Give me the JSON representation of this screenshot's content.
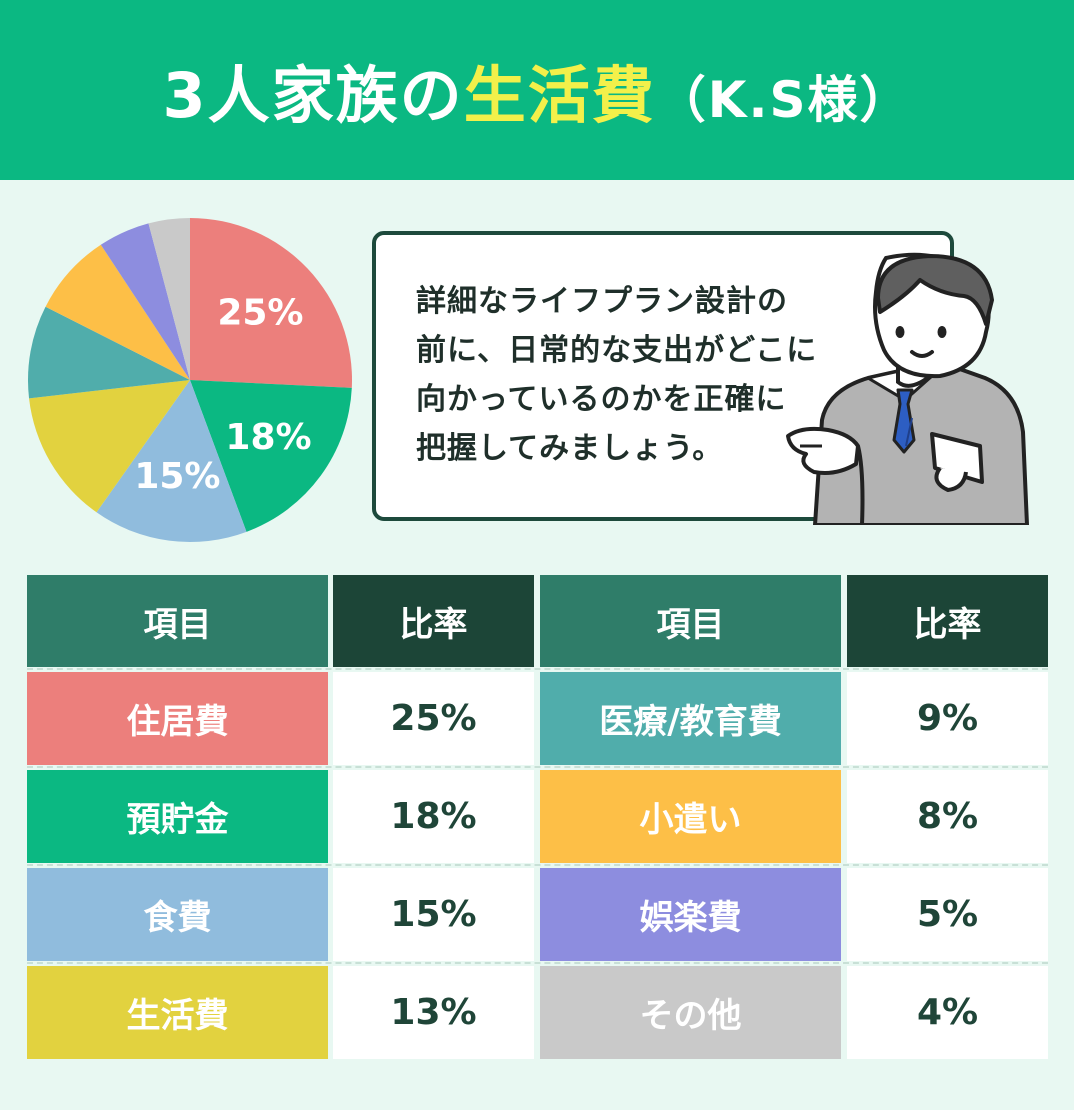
{
  "header": {
    "title_prefix": "3人家族の",
    "title_highlight": "生活費",
    "title_suffix": "（K.S様）"
  },
  "speech": {
    "lines": [
      "詳細なライフプラン設計の",
      "前に、日常的な支出がどこに",
      "向かっているのかを正確に",
      "把握してみましょう。"
    ]
  },
  "table": {
    "header_item": "項目",
    "header_rate": "比率"
  },
  "chart_data": {
    "type": "pie",
    "title": "",
    "slices": [
      {
        "label": "住居費",
        "value": 25,
        "display": "25%",
        "color": "#ec7f7c",
        "show_label": true
      },
      {
        "label": "預貯金",
        "value": 18,
        "display": "18%",
        "color": "#0bb882",
        "show_label": true
      },
      {
        "label": "食費",
        "value": 15,
        "display": "15%",
        "color": "#90bcdd",
        "show_label": true
      },
      {
        "label": "生活費",
        "value": 13,
        "display": "13%",
        "color": "#e2d23f",
        "show_label": false
      },
      {
        "label": "医療/教育費",
        "value": 9,
        "display": "9%",
        "color": "#50adab",
        "show_label": false
      },
      {
        "label": "小遣い",
        "value": 8,
        "display": "8%",
        "color": "#fdbf47",
        "show_label": false
      },
      {
        "label": "娯楽費",
        "value": 5,
        "display": "5%",
        "color": "#8d8ddf",
        "show_label": false
      },
      {
        "label": "その他",
        "value": 4,
        "display": "4%",
        "color": "#c9c9c9",
        "show_label": false
      }
    ]
  }
}
